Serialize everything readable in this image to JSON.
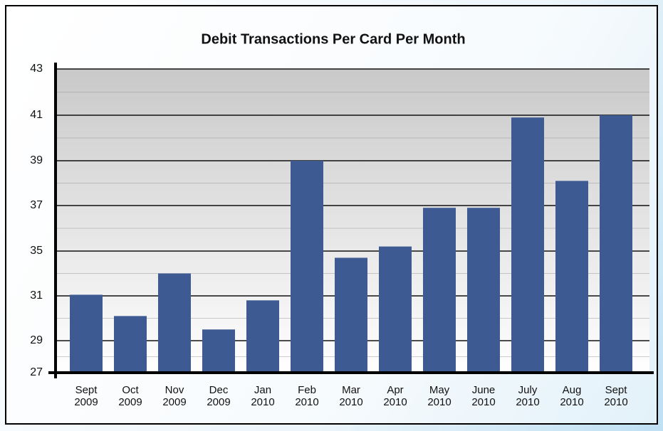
{
  "chart_data": {
    "type": "bar",
    "title": "Debit Transactions Per Card Per Month",
    "categories": [
      "Sept 2009",
      "Oct 2009",
      "Nov 2009",
      "Dec 2009",
      "Jan 2010",
      "Feb 2010",
      "Mar 2010",
      "Apr 2010",
      "May 2010",
      "June 2010",
      "July 2010",
      "Aug 2010",
      "Sept 2010"
    ],
    "values": [
      31.1,
      30.1,
      33.0,
      29.5,
      30.8,
      39.0,
      34.4,
      35.2,
      36.9,
      36.9,
      40.9,
      38.1,
      41.0
    ],
    "color": "#3d5a93",
    "ylim": [
      27,
      43
    ],
    "yticks": [
      27,
      29,
      31,
      35,
      37,
      39,
      41,
      43
    ],
    "grid": true
  }
}
